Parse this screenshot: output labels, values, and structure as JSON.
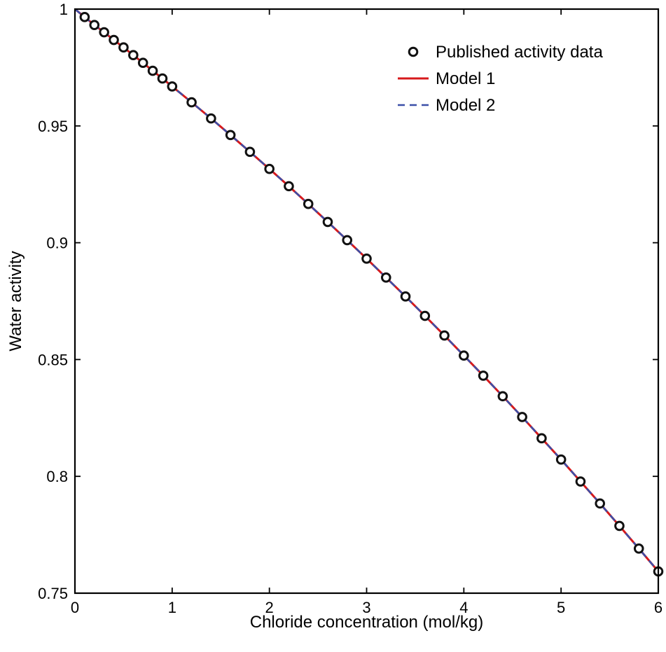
{
  "chart_data": {
    "type": "line",
    "title": "",
    "xlabel": "Chloride concentration (mol/kg)",
    "ylabel": "Water activity",
    "xlim": [
      0,
      6
    ],
    "ylim": [
      0.75,
      1
    ],
    "x_ticks": [
      "0",
      "1",
      "2",
      "3",
      "4",
      "5",
      "6"
    ],
    "y_ticks": [
      "0.75",
      "0.8",
      "0.85",
      "0.9",
      "0.95",
      "1"
    ],
    "x_tick_values": [
      0,
      1,
      2,
      3,
      4,
      5,
      6
    ],
    "y_tick_values": [
      0.75,
      0.8,
      0.85,
      0.9,
      0.95,
      1
    ],
    "grid": false,
    "legend_position": "top-right",
    "series": [
      {
        "name": "Published activity data",
        "style": "markers",
        "color": "#111111",
        "x": [
          0.1,
          0.2,
          0.3,
          0.4,
          0.5,
          0.6,
          0.7,
          0.8,
          0.9,
          1.0,
          1.2,
          1.4,
          1.6,
          1.8,
          2.0,
          2.2,
          2.4,
          2.6,
          2.8,
          3.0,
          3.2,
          3.4,
          3.6,
          3.8,
          4.0,
          4.2,
          4.4,
          4.6,
          4.8,
          5.0,
          5.2,
          5.4,
          5.6,
          5.8,
          6.0
        ],
        "y": [
          0.9966,
          0.9932,
          0.9901,
          0.9868,
          0.9836,
          0.9803,
          0.977,
          0.9736,
          0.9703,
          0.9669,
          0.9601,
          0.9532,
          0.9461,
          0.9389,
          0.9316,
          0.9242,
          0.9166,
          0.9089,
          0.9011,
          0.8932,
          0.8851,
          0.877,
          0.8687,
          0.8603,
          0.8517,
          0.8431,
          0.8343,
          0.8254,
          0.8163,
          0.8072,
          0.7978,
          0.7884,
          0.7788,
          0.7691,
          0.7593
        ]
      },
      {
        "name": "Model 1",
        "style": "solid",
        "color": "#d7191c",
        "x": [
          0,
          0.1,
          0.2,
          0.3,
          0.4,
          0.5,
          0.6,
          0.7,
          0.8,
          0.9,
          1.0,
          1.2,
          1.4,
          1.6,
          1.8,
          2.0,
          2.2,
          2.4,
          2.6,
          2.8,
          3.0,
          3.2,
          3.4,
          3.6,
          3.8,
          4.0,
          4.2,
          4.4,
          4.6,
          4.8,
          5.0,
          5.2,
          5.4,
          5.6,
          5.8,
          6.0
        ],
        "y": [
          1.0,
          0.9966,
          0.9932,
          0.9901,
          0.9868,
          0.9836,
          0.9803,
          0.977,
          0.9736,
          0.9703,
          0.9669,
          0.9601,
          0.9532,
          0.9461,
          0.9389,
          0.9316,
          0.9242,
          0.9166,
          0.9089,
          0.9011,
          0.8932,
          0.8851,
          0.877,
          0.8687,
          0.8603,
          0.8517,
          0.8431,
          0.8343,
          0.8254,
          0.8163,
          0.8072,
          0.7978,
          0.7884,
          0.7788,
          0.7691,
          0.7593
        ]
      },
      {
        "name": "Model 2",
        "style": "dashed",
        "color": "#3b4fa8",
        "x": [
          0,
          0.1,
          0.2,
          0.3,
          0.4,
          0.5,
          0.6,
          0.7,
          0.8,
          0.9,
          1.0,
          1.2,
          1.4,
          1.6,
          1.8,
          2.0,
          2.2,
          2.4,
          2.6,
          2.8,
          3.0,
          3.2,
          3.4,
          3.6,
          3.8,
          4.0,
          4.2,
          4.4,
          4.6,
          4.8,
          5.0,
          5.2,
          5.4,
          5.6,
          5.8,
          6.0
        ],
        "y": [
          1.0,
          0.9966,
          0.9932,
          0.9901,
          0.9868,
          0.9836,
          0.9803,
          0.977,
          0.9736,
          0.9703,
          0.9669,
          0.9601,
          0.9532,
          0.9461,
          0.9389,
          0.9316,
          0.9242,
          0.9166,
          0.9089,
          0.9011,
          0.8932,
          0.8851,
          0.877,
          0.8687,
          0.8603,
          0.8517,
          0.8431,
          0.8343,
          0.8254,
          0.8163,
          0.8072,
          0.7978,
          0.7884,
          0.7788,
          0.7691,
          0.7593
        ]
      }
    ]
  }
}
